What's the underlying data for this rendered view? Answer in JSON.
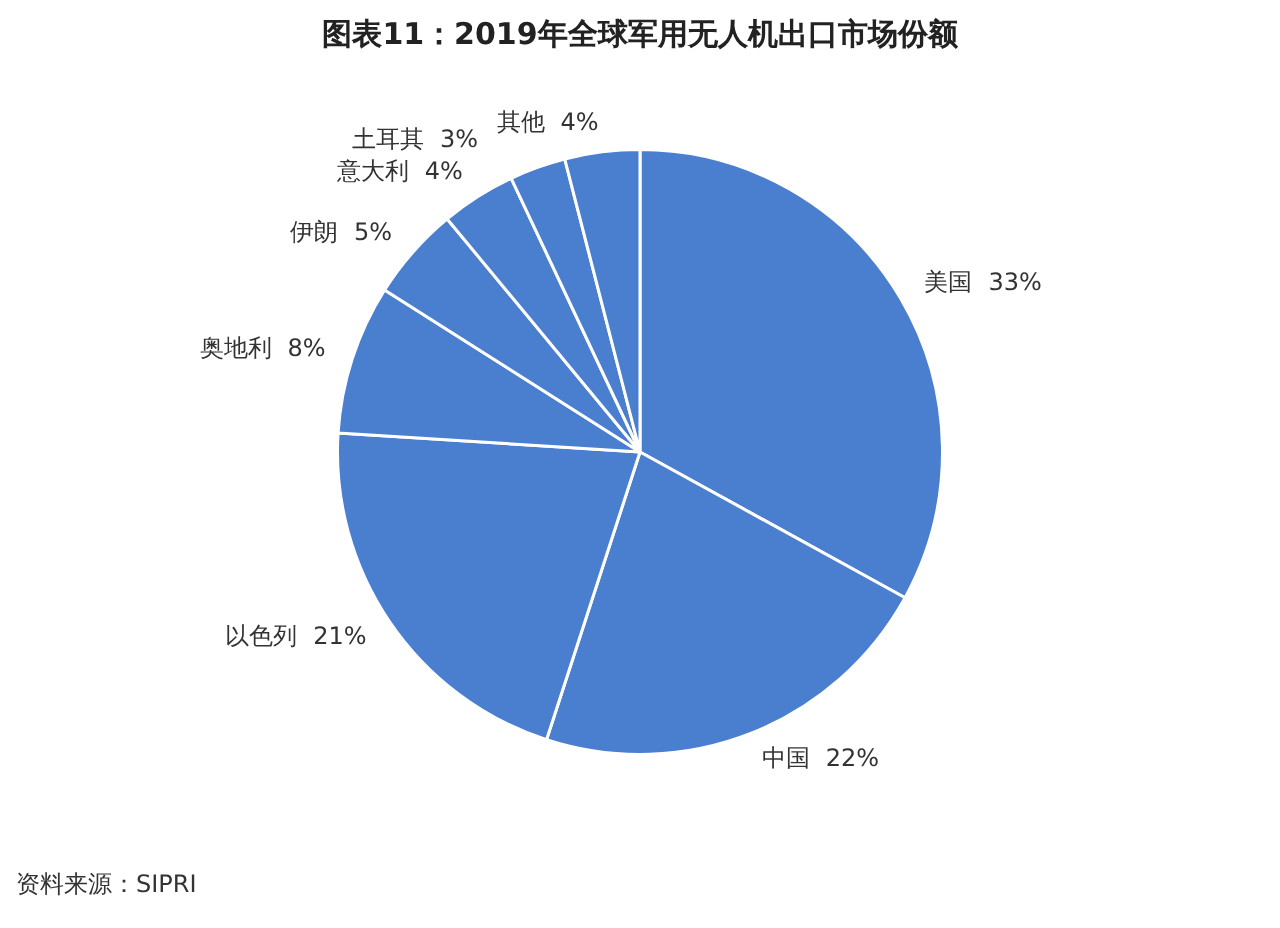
{
  "chart_data": {
    "type": "pie",
    "title": "图表11：2019年全球军用无人机出口市场份额",
    "categories": [
      "美国",
      "中国",
      "以色列",
      "奥地利",
      "伊朗",
      "意大利",
      "土耳其",
      "其他"
    ],
    "values": [
      33,
      22,
      21,
      8,
      5,
      4,
      3,
      4
    ],
    "value_labels": [
      "33%",
      "22%",
      "21%",
      "8%",
      "5%",
      "4%",
      "3%",
      "4%"
    ],
    "colors": [
      "#4a7ecf",
      "#4a7ecf",
      "#4a7ecf",
      "#4a7ecf",
      "#4a7ecf",
      "#4a7ecf",
      "#4a7ecf",
      "#4a7ecf"
    ],
    "legend": false,
    "annotations": [
      "资料来源：SIPRI"
    ]
  }
}
